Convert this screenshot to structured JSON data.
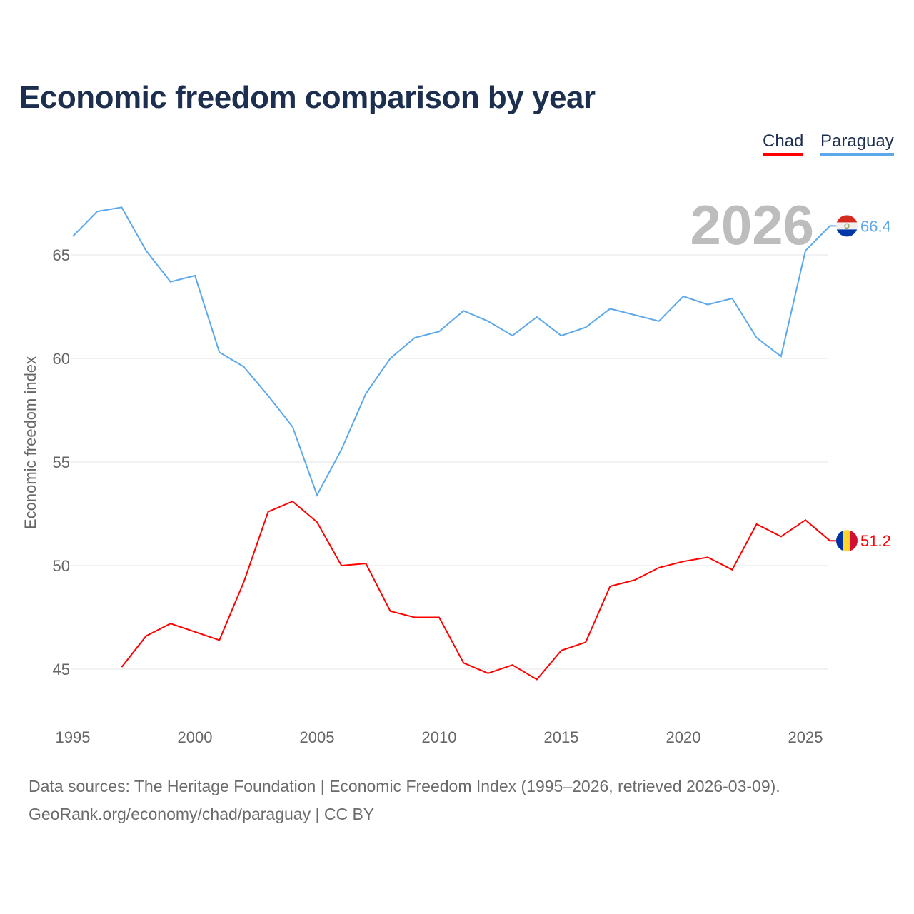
{
  "title": "Economic freedom comparison by year",
  "source_line1": "Data sources: The Heritage Foundation | Economic Freedom Index (1995–2026, retrieved 2026-03-09).",
  "source_line2": "GeoRank.org/economy/chad/paraguay | CC BY",
  "chart_data": {
    "type": "line",
    "title": "Economic freedom comparison by year",
    "ylabel": "Economic freedom index",
    "xlabel": "",
    "year_label": "2026",
    "ylim": [
      42.5,
      68
    ],
    "xlim": [
      1995,
      2026
    ],
    "yticks": [
      45,
      50,
      55,
      60,
      65
    ],
    "xticks": [
      1995,
      2000,
      2005,
      2010,
      2015,
      2020,
      2025
    ],
    "grid": true,
    "legend_position": "top-right",
    "series": [
      {
        "name": "Chad",
        "color": "#ff0000",
        "end_label": "51.2",
        "x": [
          1997,
          1998,
          1999,
          2000,
          2001,
          2002,
          2003,
          2004,
          2005,
          2006,
          2007,
          2008,
          2009,
          2010,
          2011,
          2012,
          2013,
          2014,
          2015,
          2016,
          2017,
          2018,
          2019,
          2020,
          2021,
          2022,
          2023,
          2024,
          2025,
          2026
        ],
        "values": [
          45.1,
          46.6,
          47.2,
          46.8,
          46.4,
          49.2,
          52.6,
          53.1,
          52.1,
          50.0,
          50.1,
          47.8,
          47.5,
          47.5,
          45.3,
          44.8,
          45.2,
          44.5,
          45.9,
          46.3,
          49.0,
          49.3,
          49.9,
          50.2,
          50.4,
          49.8,
          52.0,
          51.4,
          52.2,
          51.2
        ]
      },
      {
        "name": "Paraguay",
        "color": "#5da8ea",
        "end_label": "66.4",
        "x": [
          1995,
          1996,
          1997,
          1998,
          1999,
          2000,
          2001,
          2002,
          2003,
          2004,
          2005,
          2006,
          2007,
          2008,
          2009,
          2010,
          2011,
          2012,
          2013,
          2014,
          2015,
          2016,
          2017,
          2018,
          2019,
          2020,
          2021,
          2022,
          2023,
          2024,
          2025,
          2026
        ],
        "values": [
          65.9,
          67.1,
          67.3,
          65.2,
          63.7,
          64.0,
          60.3,
          59.6,
          58.2,
          56.7,
          53.4,
          55.6,
          58.3,
          60.0,
          61.0,
          61.3,
          62.3,
          61.8,
          61.1,
          62.0,
          61.1,
          61.5,
          62.4,
          62.1,
          61.8,
          63.0,
          62.6,
          62.9,
          61.0,
          60.1,
          65.2,
          66.4
        ]
      }
    ]
  }
}
